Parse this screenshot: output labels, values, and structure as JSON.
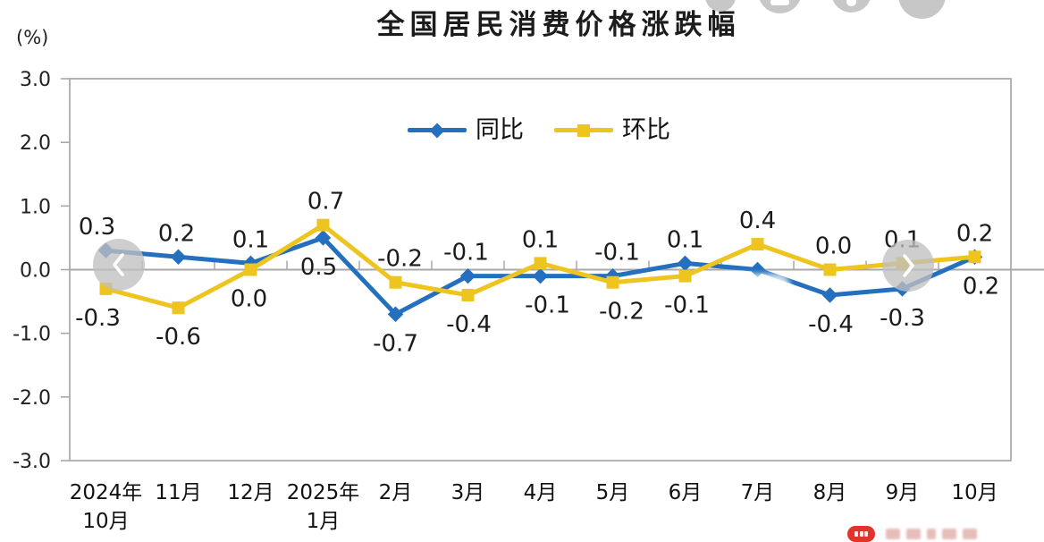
{
  "chart_data": {
    "type": "line",
    "title": "全国居民消费价格涨跌幅",
    "unit_label": "(%)",
    "categories": [
      "2024年\n10月",
      "11月",
      "12月",
      "2025年\n1月",
      "2月",
      "3月",
      "4月",
      "5月",
      "6月",
      "7月",
      "8月",
      "9月",
      "10月"
    ],
    "series": [
      {
        "name": "同比",
        "color": "#2470BE",
        "marker": "diamond",
        "values": [
          0.3,
          0.2,
          0.1,
          0.5,
          -0.7,
          -0.1,
          -0.1,
          -0.1,
          0.1,
          0.0,
          -0.4,
          -0.3,
          0.2
        ],
        "labels": [
          "0.3",
          "0.2",
          "0.1",
          "0.5",
          "-0.7",
          "-0.1",
          "-0.1",
          "-0.1",
          "0.1",
          "",
          "-0.4",
          "-0.3",
          "0.2"
        ],
        "label_side": [
          "up",
          "up",
          "up",
          "down",
          "down",
          "up",
          "down",
          "up",
          "up",
          "none",
          "down",
          "down",
          "down"
        ],
        "label_dx": [
          -10,
          -2,
          0,
          -5,
          0,
          -2,
          8,
          5,
          0,
          0,
          1,
          0,
          7
        ]
      },
      {
        "name": "环比",
        "color": "#EEC41F",
        "marker": "square",
        "values": [
          -0.3,
          -0.6,
          0.0,
          0.7,
          -0.2,
          -0.4,
          0.1,
          -0.2,
          -0.1,
          0.4,
          0.0,
          0.1,
          0.2
        ],
        "labels": [
          "-0.3",
          "-0.6",
          "0.0",
          "0.7",
          "-0.2",
          "-0.4",
          "0.1",
          "-0.2",
          "-0.1",
          "0.4",
          "0.0",
          "0.1",
          "0.2"
        ],
        "label_side": [
          "down",
          "down",
          "down",
          "up",
          "up",
          "down",
          "up",
          "down",
          "down",
          "up",
          "up",
          "up",
          "up"
        ],
        "label_dx": [
          -9,
          0,
          -2,
          3,
          5,
          1,
          0,
          10,
          2,
          0,
          4,
          0,
          0
        ]
      }
    ],
    "ylim": [
      -3.0,
      3.0
    ],
    "yticks": [
      "3.0",
      "2.0",
      "1.0",
      "0.0",
      "-1.0",
      "-2.0",
      "-3.0"
    ],
    "axis_color": "#a8a8a8",
    "label_color": "#1b1b1b",
    "grid": "zero-line-only",
    "legend_position": "top-center"
  },
  "ui": {
    "icons": {
      "nav_left": "chevron-left-icon",
      "nav_right": "chevron-right-icon",
      "float_button_2": "minimize-icon"
    },
    "watermark_badge_color": "#e2342b"
  }
}
